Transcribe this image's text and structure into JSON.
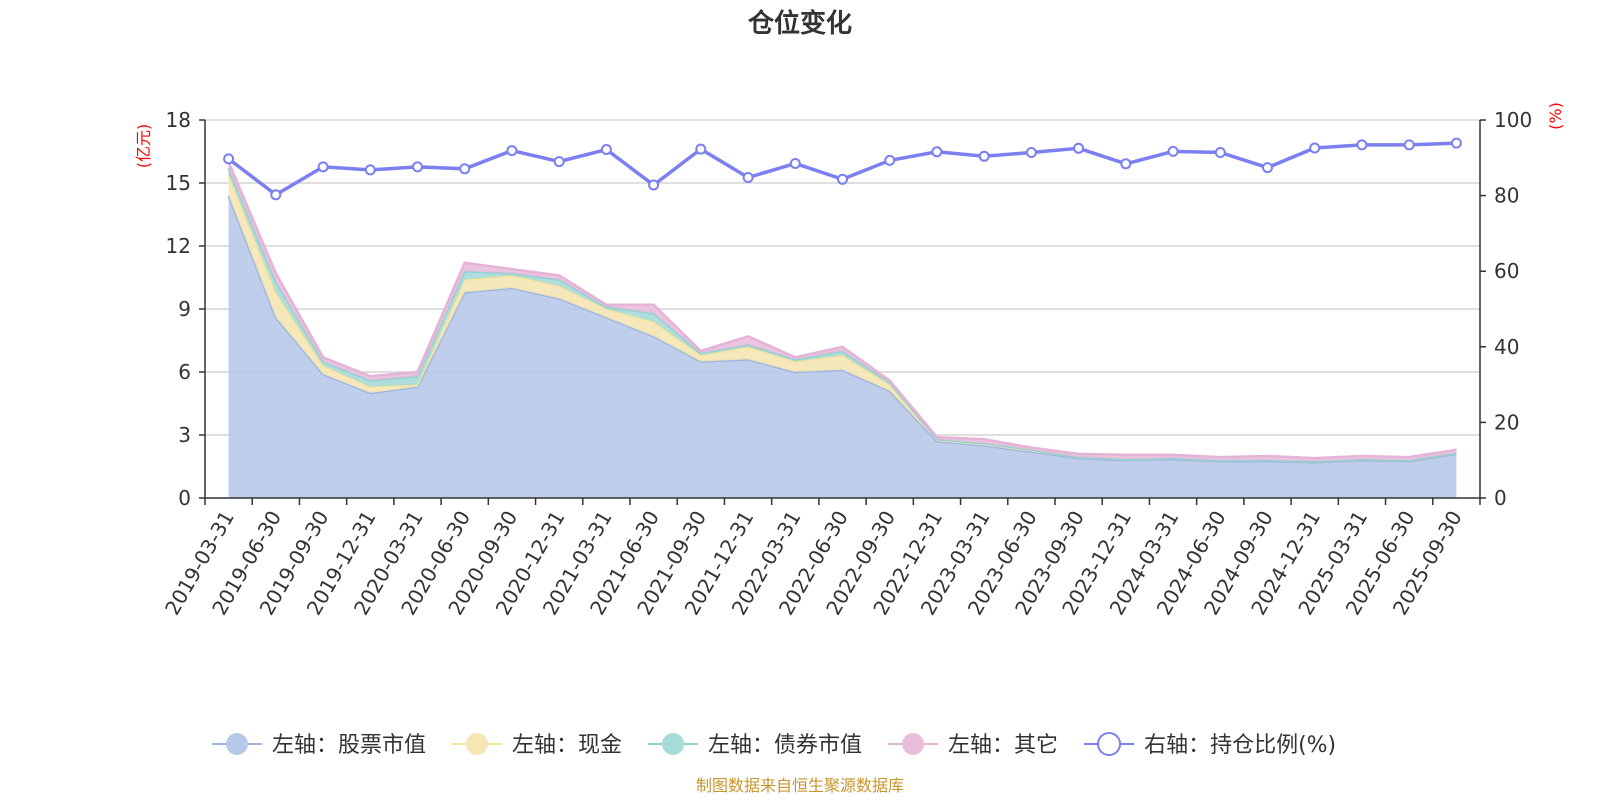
{
  "chart_data": {
    "type": "area",
    "title": "仓位变化",
    "source": "制图数据来自恒生聚源数据库",
    "left_axis": {
      "unit": "(亿元)",
      "range": [
        0,
        18
      ],
      "ticks": [
        "0",
        "3",
        "6",
        "9",
        "12",
        "15",
        "18"
      ]
    },
    "right_axis": {
      "unit": "(%)",
      "range": [
        0,
        100
      ],
      "ticks": [
        "0",
        "20",
        "40",
        "60",
        "80",
        "100"
      ]
    },
    "categories": [
      "2019-03-31",
      "2019-06-30",
      "2019-09-30",
      "2019-12-31",
      "2020-03-31",
      "2020-06-30",
      "2020-09-30",
      "2020-12-31",
      "2021-03-31",
      "2021-06-30",
      "2021-09-30",
      "2021-12-31",
      "2022-03-31",
      "2022-06-30",
      "2022-09-30",
      "2022-12-31",
      "2023-03-31",
      "2023-06-30",
      "2023-09-30",
      "2023-12-31",
      "2024-03-31",
      "2024-06-30",
      "2024-09-30",
      "2024-12-31",
      "2025-03-31",
      "2025-06-30",
      "2025-09-30"
    ],
    "stacked_series": [
      {
        "name": "左轴：股票市值",
        "axis": "left",
        "line_color": "#9bb6e0",
        "fill_color": "#b7c9e9",
        "values": [
          14.4,
          8.6,
          5.9,
          5.0,
          5.3,
          9.8,
          10.0,
          9.5,
          8.6,
          7.7,
          6.5,
          6.6,
          6.0,
          6.1,
          5.1,
          2.7,
          2.5,
          2.2,
          1.9,
          1.8,
          1.85,
          1.75,
          1.75,
          1.7,
          1.8,
          1.75,
          2.1
        ]
      },
      {
        "name": "左轴：现金",
        "axis": "left",
        "line_color": "#f7e39a",
        "fill_color": "#f5e6b3",
        "values": [
          1.0,
          1.2,
          0.4,
          0.3,
          0.1,
          0.6,
          0.6,
          0.6,
          0.4,
          0.7,
          0.3,
          0.6,
          0.5,
          0.7,
          0.3,
          0.1,
          0.1,
          0.1,
          0.05,
          0.05,
          0.05,
          0.05,
          0.05,
          0.05,
          0.05,
          0.05,
          0.05
        ]
      },
      {
        "name": "左轴：债券市值",
        "axis": "left",
        "line_color": "#8fd1d1",
        "fill_color": "#a6dcd8",
        "values": [
          0.3,
          0.5,
          0.2,
          0.3,
          0.4,
          0.4,
          0.1,
          0.3,
          0.1,
          0.4,
          0.1,
          0.1,
          0.1,
          0.2,
          0.1,
          0.0,
          0.0,
          0.0,
          0.0,
          0.0,
          0.0,
          0.0,
          0.0,
          0.0,
          0.0,
          0.0,
          0.0
        ]
      },
      {
        "name": "左轴：其它",
        "axis": "left",
        "line_color": "#e6b3d8",
        "fill_color": "#e9bedb",
        "values": [
          0.3,
          0.4,
          0.2,
          0.2,
          0.2,
          0.4,
          0.2,
          0.2,
          0.1,
          0.4,
          0.1,
          0.4,
          0.1,
          0.2,
          0.1,
          0.1,
          0.2,
          0.1,
          0.15,
          0.2,
          0.15,
          0.15,
          0.2,
          0.15,
          0.15,
          0.15,
          0.15
        ]
      }
    ],
    "line_series": {
      "name": "右轴：持仓比例(%)",
      "axis": "right",
      "color": "#7b7ff0",
      "values": [
        89.7,
        80.2,
        87.6,
        86.8,
        87.6,
        87.1,
        91.9,
        89.0,
        92.2,
        82.8,
        92.3,
        84.8,
        88.5,
        84.3,
        89.3,
        91.6,
        90.4,
        91.4,
        92.5,
        88.4,
        91.7,
        91.4,
        87.4,
        92.6,
        93.4,
        93.4,
        93.9
      ]
    },
    "legend_position": "bottom"
  }
}
